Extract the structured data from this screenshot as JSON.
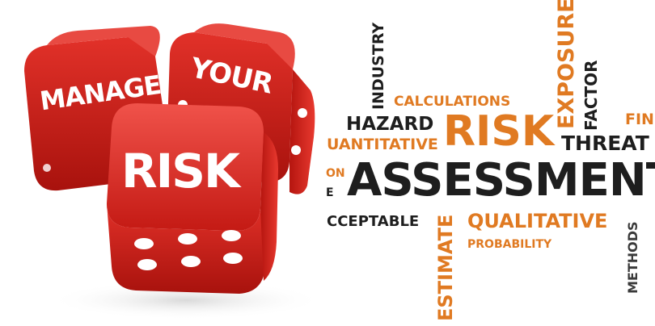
{
  "dice": {
    "labels": [
      "MANAGE",
      "YOUR",
      "RISK"
    ],
    "color": "#d9251d",
    "pip_color": "#ffffff"
  },
  "word_cloud": {
    "words": {
      "assessment": "ASSESSMENT",
      "risk": "RISK",
      "hazard": "HAZARD",
      "calculations": "CALCULATIONS",
      "quantitative": "UANTITATIVE",
      "threat": "THREAT",
      "qualitative": "QUALITATIVE",
      "acceptable": "CCEPTABLE",
      "probability": "PROBABILITY",
      "industry": "INDUSTRY",
      "exposure": "EXPOSURE",
      "factor": "FACTOR",
      "estimate": "ESTIMATE",
      "methods": "METHODS",
      "fin": "FIN",
      "on": "ON",
      "e": "E"
    },
    "colors": {
      "dark": "#1e1e1e",
      "orange": "#e07a22"
    }
  }
}
